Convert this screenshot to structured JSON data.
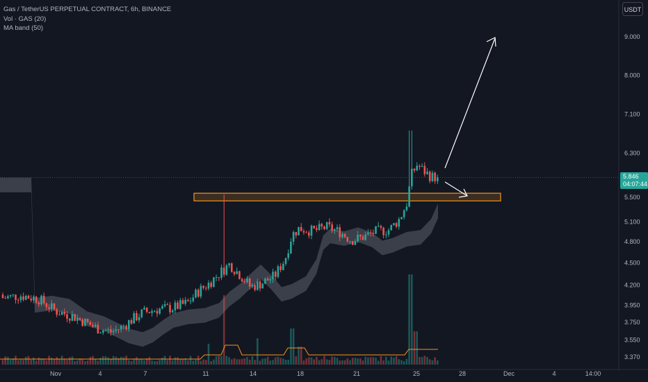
{
  "legend": {
    "symbol": "Gas / TetherUS PERPETUAL CONTRACT, 6h, BINANCE",
    "volume": "Vol · GAS (20)",
    "maband": "MA band (50)"
  },
  "currency": "USDT",
  "price_tag": {
    "price": "5.846",
    "countdown": "04:07:44"
  },
  "colors": {
    "up": "#26a69a",
    "down": "#ef5350",
    "background": "#131722",
    "zone_border": "#f7931a",
    "band": "#5d606b",
    "vol_ma": "#f7931a"
  },
  "chart_data": {
    "type": "candlestick",
    "y_axis": {
      "scale": "log",
      "range": [
        3.3,
        10.0
      ],
      "tick_labels": [
        "9.000",
        "8.000",
        "7.100",
        "6.300",
        "5.500",
        "5.100",
        "4.800",
        "4.500",
        "4.200",
        "3.950",
        "3.750",
        "3.550",
        "3.370"
      ],
      "tick_values": [
        9.0,
        8.0,
        7.1,
        6.3,
        5.5,
        5.1,
        4.8,
        4.5,
        4.2,
        3.95,
        3.75,
        3.55,
        3.37
      ]
    },
    "x_axis": {
      "tick_labels": [
        "Nov",
        "4",
        "7",
        "11",
        "14",
        "18",
        "21",
        "25",
        "28",
        "Dec",
        "4",
        "14:00"
      ]
    },
    "price_range_6h": {
      "open_first": 4.08,
      "last": 5.846,
      "high": 6.75,
      "low": 3.62
    },
    "resistance_zone": {
      "low": 5.44,
      "high": 5.57
    },
    "annotations": [
      "arrow up toward 9.000",
      "arrow toward resistance zone"
    ]
  }
}
